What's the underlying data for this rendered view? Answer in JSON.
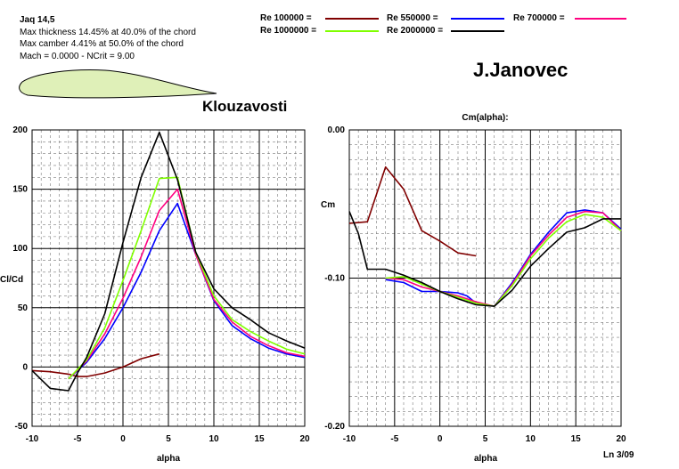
{
  "header": {
    "airfoil": "Jaq 14,5",
    "thickness": "Max thickness 14.45% at 40.0% of the chord",
    "camber": "Max camber 4.41% at 50.0% of the chord",
    "mach": "Mach = 0.0000 - NCrit = 9.00",
    "author": "J.Janovec",
    "subtitle": "Klouzavosti",
    "footer": "Ln 3/09"
  },
  "legend": [
    {
      "label": "Re 100000 =",
      "color": "#800000"
    },
    {
      "label": "Re 550000 =",
      "color": "#0000ff"
    },
    {
      "label": "Re 700000 =",
      "color": "#ff0080"
    },
    {
      "label": "Re 1000000 =",
      "color": "#80ff00"
    },
    {
      "label": "Re 2000000 =",
      "color": "#000000"
    }
  ],
  "chart_data": [
    {
      "type": "line",
      "title": "",
      "xlabel": "alpha",
      "ylabel": "Cl/Cd",
      "xlim": [
        -10,
        20
      ],
      "ylim": [
        -50,
        200
      ],
      "xticks": [
        "-10",
        "-5",
        "0",
        "5",
        "10",
        "15",
        "20"
      ],
      "yticks": [
        "-50",
        "0",
        "50",
        "100",
        "150",
        "200"
      ],
      "grid": true,
      "series": [
        {
          "name": "Re 100000",
          "color": "#800000",
          "x": [
            -10,
            -8,
            -6,
            -5,
            -4,
            -2,
            0,
            2,
            4
          ],
          "y": [
            -3,
            -4,
            -6,
            -8,
            -8,
            -5,
            0,
            7,
            11
          ]
        },
        {
          "name": "Re 550000",
          "color": "#0000ff",
          "x": [
            -6,
            -4,
            -2,
            0,
            2,
            4,
            6,
            8,
            10,
            12,
            14,
            16,
            18,
            20
          ],
          "y": [
            -10,
            4,
            24,
            50,
            80,
            115,
            138,
            95,
            56,
            35,
            24,
            16,
            11,
            8
          ]
        },
        {
          "name": "Re 700000",
          "color": "#ff0080",
          "x": [
            -6,
            -4,
            -2,
            0,
            2,
            4,
            6,
            8,
            10,
            12,
            14,
            16,
            18,
            20
          ],
          "y": [
            -10,
            5,
            28,
            58,
            93,
            132,
            150,
            95,
            57,
            38,
            26,
            18,
            12,
            9
          ]
        },
        {
          "name": "Re 1000000",
          "color": "#80ff00",
          "x": [
            -6,
            -4,
            -2,
            0,
            2,
            4,
            6,
            8,
            10,
            12,
            14,
            16,
            18,
            20
          ],
          "y": [
            -10,
            6,
            33,
            73,
            115,
            159,
            160,
            97,
            60,
            40,
            30,
            22,
            15,
            11
          ]
        },
        {
          "name": "Re 2000000",
          "color": "#000000",
          "x": [
            -10,
            -8,
            -6,
            -5,
            -4,
            -2,
            0,
            2,
            4,
            6,
            8,
            10,
            12,
            14,
            16,
            18,
            20
          ],
          "y": [
            -3,
            -18,
            -20,
            -5,
            8,
            45,
            105,
            160,
            198,
            158,
            97,
            66,
            50,
            40,
            29,
            22,
            16
          ]
        }
      ]
    },
    {
      "type": "line",
      "title": "Cm(alpha):",
      "xlabel": "alpha",
      "ylabel": "Cm",
      "xlim": [
        -10,
        20
      ],
      "ylim": [
        -0.2,
        0.0
      ],
      "xticks": [
        "-10",
        "-5",
        "0",
        "5",
        "10",
        "15",
        "20"
      ],
      "yticks": [
        "0.00",
        "-0.10",
        "-0.20"
      ],
      "grid": true,
      "series": [
        {
          "name": "Re 100000",
          "color": "#800000",
          "x": [
            -10,
            -8,
            -6,
            -4,
            -2,
            0,
            2,
            4
          ],
          "y": [
            -0.063,
            -0.062,
            -0.025,
            -0.04,
            -0.068,
            -0.075,
            -0.083,
            -0.085
          ]
        },
        {
          "name": "Re 550000",
          "color": "#0000ff",
          "x": [
            -6,
            -4,
            -2,
            0,
            2,
            3,
            4,
            5,
            6,
            8,
            10,
            12,
            14,
            16,
            18,
            20
          ],
          "y": [
            -0.101,
            -0.103,
            -0.109,
            -0.109,
            -0.11,
            -0.112,
            -0.117,
            -0.118,
            -0.119,
            -0.103,
            -0.084,
            -0.069,
            -0.056,
            -0.054,
            -0.056,
            -0.067
          ]
        },
        {
          "name": "Re 700000",
          "color": "#ff0080",
          "x": [
            -6,
            -4,
            -2,
            0,
            2,
            4,
            6,
            8,
            10,
            12,
            14,
            16,
            18,
            20
          ],
          "y": [
            -0.1,
            -0.101,
            -0.106,
            -0.109,
            -0.112,
            -0.116,
            -0.119,
            -0.104,
            -0.085,
            -0.071,
            -0.059,
            -0.055,
            -0.056,
            -0.068
          ]
        },
        {
          "name": "Re 1000000",
          "color": "#80ff00",
          "x": [
            -6,
            -4,
            -2,
            0,
            2,
            4,
            6,
            8,
            10,
            12,
            14,
            16,
            18,
            20
          ],
          "y": [
            -0.1,
            -0.099,
            -0.104,
            -0.109,
            -0.113,
            -0.117,
            -0.119,
            -0.105,
            -0.087,
            -0.073,
            -0.062,
            -0.057,
            -0.059,
            -0.068
          ]
        },
        {
          "name": "Re 2000000",
          "color": "#000000",
          "x": [
            -10,
            -9,
            -8,
            -6,
            -4,
            -2,
            0,
            2,
            4,
            6,
            8,
            10,
            12,
            14,
            16,
            18,
            20
          ],
          "y": [
            -0.055,
            -0.07,
            -0.094,
            -0.094,
            -0.098,
            -0.103,
            -0.109,
            -0.114,
            -0.118,
            -0.119,
            -0.108,
            -0.092,
            -0.08,
            -0.069,
            -0.066,
            -0.06,
            -0.06
          ]
        }
      ]
    }
  ]
}
